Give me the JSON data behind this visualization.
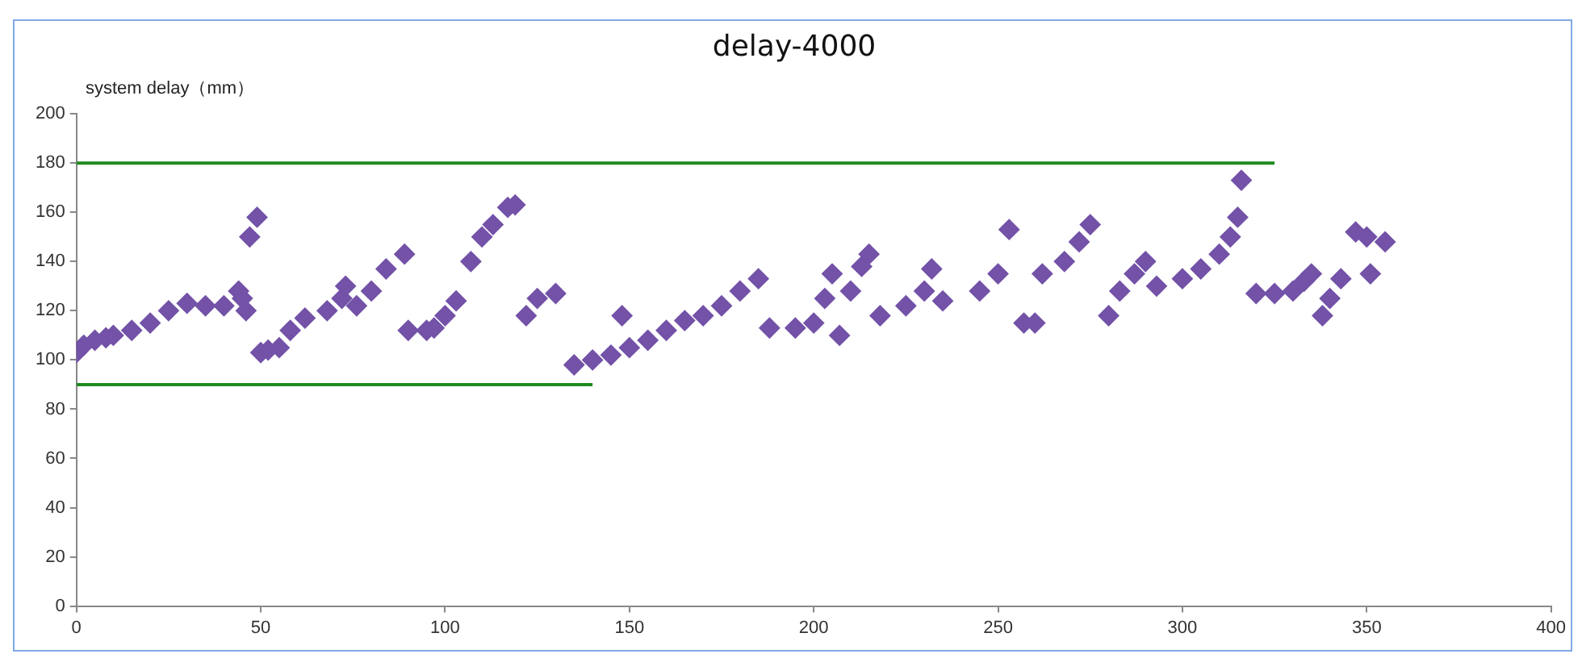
{
  "chart_data": {
    "type": "scatter",
    "title": "delay-4000",
    "ylabel": "system delay（mm）",
    "xlim": [
      0,
      400
    ],
    "xticks": [
      0,
      50,
      100,
      150,
      200,
      250,
      300,
      350,
      400
    ],
    "ylim": [
      0,
      200
    ],
    "yticks": [
      0,
      20,
      40,
      60,
      80,
      100,
      120,
      140,
      160,
      180,
      200
    ],
    "grid": false,
    "legend": false,
    "marker": "diamond",
    "series": [
      {
        "color": "#7352a8",
        "x": [
          0,
          2,
          5,
          8,
          10,
          15,
          20,
          25,
          30,
          35,
          40,
          44,
          45,
          46,
          47,
          49,
          50,
          52,
          55,
          58,
          62,
          68,
          72,
          73,
          76,
          80,
          84,
          89,
          90,
          95,
          97,
          100,
          103,
          107,
          110,
          113,
          117,
          119,
          122,
          125,
          130,
          135,
          140,
          145,
          148,
          150,
          155,
          160,
          165,
          170,
          175,
          180,
          185,
          188,
          195,
          200,
          203,
          205,
          207,
          210,
          213,
          215,
          218,
          225,
          230,
          232,
          235,
          245,
          250,
          253,
          257,
          260,
          262,
          268,
          272,
          275,
          280,
          283,
          287,
          290,
          293,
          300,
          305,
          310,
          313,
          315,
          316,
          320,
          325,
          330,
          333,
          335,
          338,
          340,
          343,
          347,
          350,
          351,
          355
        ],
        "values": [
          103,
          106,
          108,
          109,
          110,
          112,
          115,
          120,
          123,
          122,
          122,
          128,
          125,
          120,
          150,
          158,
          103,
          104,
          105,
          112,
          117,
          120,
          125,
          130,
          122,
          128,
          137,
          143,
          112,
          112,
          113,
          118,
          124,
          140,
          150,
          155,
          162,
          163,
          118,
          125,
          127,
          98,
          100,
          102,
          118,
          105,
          108,
          112,
          116,
          118,
          122,
          128,
          133,
          113,
          113,
          115,
          125,
          135,
          110,
          128,
          138,
          143,
          118,
          122,
          128,
          137,
          124,
          128,
          135,
          153,
          115,
          115,
          135,
          140,
          148,
          155,
          118,
          128,
          135,
          140,
          130,
          133,
          137,
          143,
          150,
          158,
          173,
          127,
          127,
          128,
          132,
          135,
          118,
          125,
          133,
          152,
          150,
          135,
          148
        ]
      },
      {
        "type": "line",
        "color": "#1f8a1f",
        "marker": "none",
        "x": [
          0,
          325
        ],
        "values": [
          180,
          180
        ]
      },
      {
        "type": "line",
        "color": "#1f8a1f",
        "marker": "none",
        "x": [
          0,
          140
        ],
        "values": [
          90,
          90
        ]
      }
    ]
  }
}
